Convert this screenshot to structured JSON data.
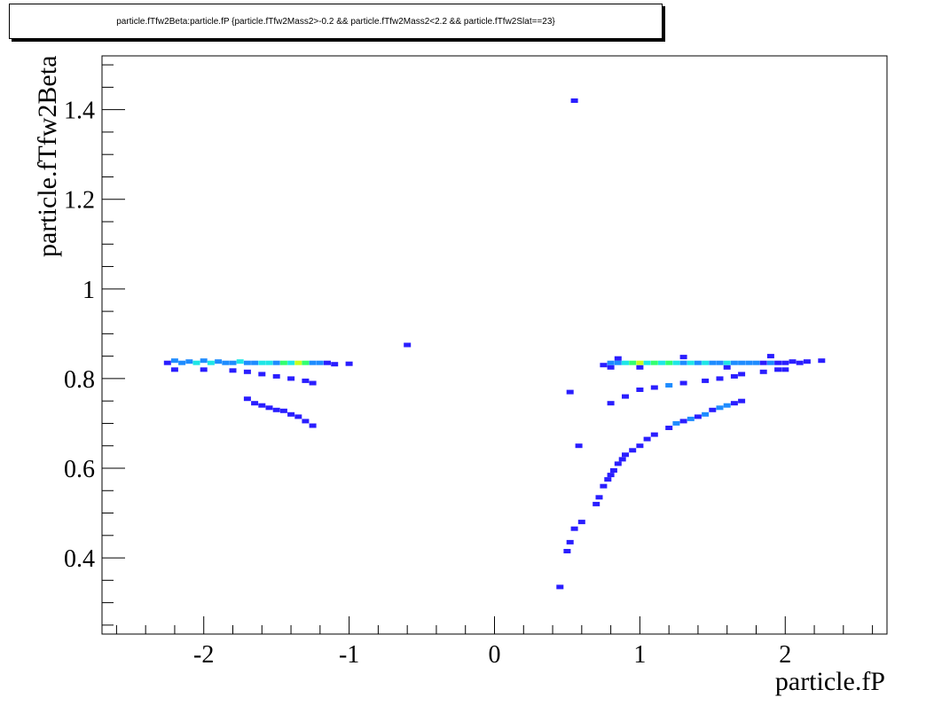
{
  "chart_data": {
    "type": "heatmap",
    "title": "particle.fTfw2Beta:particle.fP {particle.fTfw2Mass2>-0.2 && particle.fTfw2Mass2<2.2 && particle.fTfw2Slat==23}",
    "xlabel": "particle.fP",
    "ylabel": "particle.fTfw2Beta",
    "xlim": [
      -2.7,
      2.7
    ],
    "ylim": [
      0.23,
      1.52
    ],
    "x_ticks": [
      -2,
      -1,
      0,
      1,
      2
    ],
    "x_tick_labels": [
      "-2",
      "-1",
      "0",
      "1",
      "2"
    ],
    "y_ticks": [
      0.4,
      0.6,
      0.8,
      1.0,
      1.2,
      1.4
    ],
    "y_tick_labels": [
      "0.4",
      "0.6",
      "0.8",
      "1",
      "1.2",
      "1.4"
    ],
    "grid": false,
    "colormap": [
      "#2a1eff",
      "#1e8cff",
      "#1ee6e6",
      "#32ff6e",
      "#c8ff1e",
      "#ff2020"
    ],
    "points": [
      {
        "x": -2.25,
        "y": 0.835,
        "z": 1
      },
      {
        "x": -2.2,
        "y": 0.84,
        "z": 2
      },
      {
        "x": -2.15,
        "y": 0.835,
        "z": 2
      },
      {
        "x": -2.1,
        "y": 0.838,
        "z": 2
      },
      {
        "x": -2.05,
        "y": 0.835,
        "z": 3
      },
      {
        "x": -2.0,
        "y": 0.84,
        "z": 2
      },
      {
        "x": -1.95,
        "y": 0.835,
        "z": 3
      },
      {
        "x": -1.9,
        "y": 0.838,
        "z": 2
      },
      {
        "x": -1.85,
        "y": 0.835,
        "z": 2
      },
      {
        "x": -1.8,
        "y": 0.835,
        "z": 2
      },
      {
        "x": -1.75,
        "y": 0.838,
        "z": 3
      },
      {
        "x": -1.7,
        "y": 0.835,
        "z": 2
      },
      {
        "x": -1.65,
        "y": 0.835,
        "z": 2
      },
      {
        "x": -1.6,
        "y": 0.835,
        "z": 3
      },
      {
        "x": -1.55,
        "y": 0.835,
        "z": 3
      },
      {
        "x": -1.5,
        "y": 0.835,
        "z": 2
      },
      {
        "x": -1.45,
        "y": 0.835,
        "z": 4
      },
      {
        "x": -1.4,
        "y": 0.835,
        "z": 3
      },
      {
        "x": -1.35,
        "y": 0.835,
        "z": 5
      },
      {
        "x": -1.3,
        "y": 0.835,
        "z": 4
      },
      {
        "x": -1.25,
        "y": 0.835,
        "z": 2
      },
      {
        "x": -1.2,
        "y": 0.835,
        "z": 2
      },
      {
        "x": -1.15,
        "y": 0.835,
        "z": 1
      },
      {
        "x": -1.1,
        "y": 0.832,
        "z": 1
      },
      {
        "x": -1.0,
        "y": 0.833,
        "z": 1
      },
      {
        "x": -2.2,
        "y": 0.82,
        "z": 1
      },
      {
        "x": -2.0,
        "y": 0.82,
        "z": 1
      },
      {
        "x": -1.8,
        "y": 0.818,
        "z": 1
      },
      {
        "x": -1.7,
        "y": 0.815,
        "z": 1
      },
      {
        "x": -1.6,
        "y": 0.81,
        "z": 1
      },
      {
        "x": -1.5,
        "y": 0.805,
        "z": 1
      },
      {
        "x": -1.4,
        "y": 0.8,
        "z": 1
      },
      {
        "x": -1.3,
        "y": 0.795,
        "z": 1
      },
      {
        "x": -1.25,
        "y": 0.79,
        "z": 1
      },
      {
        "x": -1.7,
        "y": 0.755,
        "z": 1
      },
      {
        "x": -1.65,
        "y": 0.745,
        "z": 1
      },
      {
        "x": -1.6,
        "y": 0.74,
        "z": 1
      },
      {
        "x": -1.55,
        "y": 0.735,
        "z": 1
      },
      {
        "x": -1.5,
        "y": 0.73,
        "z": 1
      },
      {
        "x": -1.45,
        "y": 0.728,
        "z": 1
      },
      {
        "x": -1.4,
        "y": 0.72,
        "z": 1
      },
      {
        "x": -1.35,
        "y": 0.715,
        "z": 1
      },
      {
        "x": -1.3,
        "y": 0.705,
        "z": 1
      },
      {
        "x": -1.25,
        "y": 0.695,
        "z": 1
      },
      {
        "x": -0.6,
        "y": 0.875,
        "z": 1
      },
      {
        "x": 0.55,
        "y": 1.42,
        "z": 1
      },
      {
        "x": 0.45,
        "y": 0.335,
        "z": 1
      },
      {
        "x": 0.5,
        "y": 0.415,
        "z": 1
      },
      {
        "x": 0.52,
        "y": 0.435,
        "z": 1
      },
      {
        "x": 0.55,
        "y": 0.465,
        "z": 1
      },
      {
        "x": 0.6,
        "y": 0.48,
        "z": 1
      },
      {
        "x": 0.58,
        "y": 0.65,
        "z": 1
      },
      {
        "x": 0.52,
        "y": 0.77,
        "z": 1
      },
      {
        "x": 0.7,
        "y": 0.52,
        "z": 1
      },
      {
        "x": 0.72,
        "y": 0.535,
        "z": 1
      },
      {
        "x": 0.75,
        "y": 0.56,
        "z": 1
      },
      {
        "x": 0.78,
        "y": 0.575,
        "z": 1
      },
      {
        "x": 0.8,
        "y": 0.585,
        "z": 1
      },
      {
        "x": 0.82,
        "y": 0.595,
        "z": 1
      },
      {
        "x": 0.85,
        "y": 0.61,
        "z": 1
      },
      {
        "x": 0.88,
        "y": 0.62,
        "z": 1
      },
      {
        "x": 0.9,
        "y": 0.63,
        "z": 1
      },
      {
        "x": 0.95,
        "y": 0.64,
        "z": 1
      },
      {
        "x": 1.0,
        "y": 0.65,
        "z": 1
      },
      {
        "x": 1.05,
        "y": 0.665,
        "z": 1
      },
      {
        "x": 1.1,
        "y": 0.675,
        "z": 1
      },
      {
        "x": 1.2,
        "y": 0.69,
        "z": 1
      },
      {
        "x": 1.25,
        "y": 0.7,
        "z": 2
      },
      {
        "x": 1.3,
        "y": 0.705,
        "z": 1
      },
      {
        "x": 1.35,
        "y": 0.71,
        "z": 2
      },
      {
        "x": 1.4,
        "y": 0.715,
        "z": 1
      },
      {
        "x": 1.45,
        "y": 0.72,
        "z": 2
      },
      {
        "x": 1.5,
        "y": 0.73,
        "z": 1
      },
      {
        "x": 1.55,
        "y": 0.735,
        "z": 2
      },
      {
        "x": 1.6,
        "y": 0.74,
        "z": 2
      },
      {
        "x": 1.65,
        "y": 0.745,
        "z": 1
      },
      {
        "x": 1.7,
        "y": 0.75,
        "z": 1
      },
      {
        "x": 0.8,
        "y": 0.745,
        "z": 1
      },
      {
        "x": 0.9,
        "y": 0.76,
        "z": 1
      },
      {
        "x": 1.0,
        "y": 0.775,
        "z": 1
      },
      {
        "x": 1.1,
        "y": 0.78,
        "z": 1
      },
      {
        "x": 1.2,
        "y": 0.785,
        "z": 2
      },
      {
        "x": 1.3,
        "y": 0.79,
        "z": 1
      },
      {
        "x": 1.45,
        "y": 0.795,
        "z": 1
      },
      {
        "x": 1.55,
        "y": 0.8,
        "z": 1
      },
      {
        "x": 1.65,
        "y": 0.805,
        "z": 1
      },
      {
        "x": 1.7,
        "y": 0.81,
        "z": 1
      },
      {
        "x": 1.85,
        "y": 0.815,
        "z": 1
      },
      {
        "x": 1.95,
        "y": 0.82,
        "z": 1
      },
      {
        "x": 2.0,
        "y": 0.82,
        "z": 1
      },
      {
        "x": 0.75,
        "y": 0.83,
        "z": 1
      },
      {
        "x": 0.8,
        "y": 0.835,
        "z": 2
      },
      {
        "x": 0.85,
        "y": 0.835,
        "z": 2
      },
      {
        "x": 0.9,
        "y": 0.835,
        "z": 3
      },
      {
        "x": 0.95,
        "y": 0.835,
        "z": 4
      },
      {
        "x": 1.0,
        "y": 0.835,
        "z": 5
      },
      {
        "x": 1.05,
        "y": 0.835,
        "z": 3
      },
      {
        "x": 1.1,
        "y": 0.835,
        "z": 4
      },
      {
        "x": 1.15,
        "y": 0.835,
        "z": 3
      },
      {
        "x": 1.2,
        "y": 0.835,
        "z": 4
      },
      {
        "x": 1.25,
        "y": 0.835,
        "z": 3
      },
      {
        "x": 1.3,
        "y": 0.835,
        "z": 2
      },
      {
        "x": 1.35,
        "y": 0.835,
        "z": 3
      },
      {
        "x": 1.4,
        "y": 0.835,
        "z": 2
      },
      {
        "x": 1.45,
        "y": 0.835,
        "z": 3
      },
      {
        "x": 1.5,
        "y": 0.835,
        "z": 2
      },
      {
        "x": 1.55,
        "y": 0.835,
        "z": 2
      },
      {
        "x": 1.6,
        "y": 0.835,
        "z": 3
      },
      {
        "x": 1.65,
        "y": 0.835,
        "z": 2
      },
      {
        "x": 1.7,
        "y": 0.835,
        "z": 2
      },
      {
        "x": 1.75,
        "y": 0.835,
        "z": 2
      },
      {
        "x": 1.8,
        "y": 0.835,
        "z": 2
      },
      {
        "x": 1.85,
        "y": 0.835,
        "z": 1
      },
      {
        "x": 1.9,
        "y": 0.835,
        "z": 2
      },
      {
        "x": 1.95,
        "y": 0.835,
        "z": 1
      },
      {
        "x": 2.0,
        "y": 0.835,
        "z": 1
      },
      {
        "x": 2.05,
        "y": 0.838,
        "z": 1
      },
      {
        "x": 2.1,
        "y": 0.835,
        "z": 1
      },
      {
        "x": 2.15,
        "y": 0.838,
        "z": 1
      },
      {
        "x": 2.25,
        "y": 0.84,
        "z": 1
      },
      {
        "x": 0.85,
        "y": 0.845,
        "z": 1
      },
      {
        "x": 1.3,
        "y": 0.848,
        "z": 1
      },
      {
        "x": 1.9,
        "y": 0.85,
        "z": 1
      },
      {
        "x": 0.8,
        "y": 0.825,
        "z": 1
      },
      {
        "x": 1.0,
        "y": 0.825,
        "z": 1
      },
      {
        "x": 1.6,
        "y": 0.825,
        "z": 1
      }
    ]
  }
}
